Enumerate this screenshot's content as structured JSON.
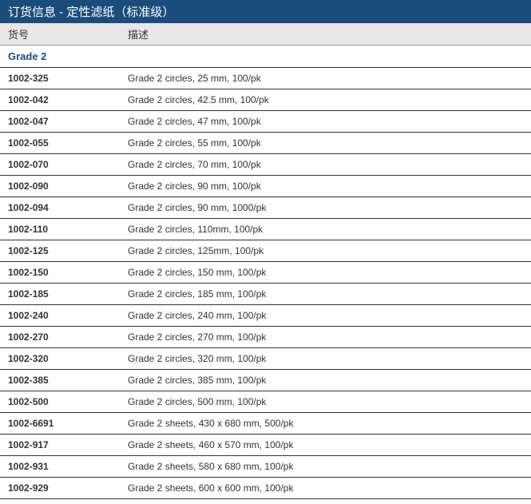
{
  "header": {
    "title": "订货信息 - 定性滤纸（标准级）"
  },
  "columns": {
    "partno_label": "货号",
    "desc_label": "描述"
  },
  "grade_label": "Grade 2",
  "rows": [
    {
      "partno": "1002-325",
      "desc": "Grade 2 circles, 25 mm, 100/pk"
    },
    {
      "partno": "1002-042",
      "desc": "Grade 2 circles, 42.5 mm, 100/pk"
    },
    {
      "partno": "1002-047",
      "desc": "Grade 2 circles, 47 mm, 100/pk"
    },
    {
      "partno": "1002-055",
      "desc": "Grade 2 circles, 55 mm, 100/pk"
    },
    {
      "partno": "1002-070",
      "desc": "Grade 2 circles, 70 mm, 100/pk"
    },
    {
      "partno": "1002-090",
      "desc": "Grade 2 circles, 90 mm, 100/pk"
    },
    {
      "partno": "1002-094",
      "desc": "Grade 2 circles, 90 mm, 1000/pk"
    },
    {
      "partno": "1002-110",
      "desc": "Grade 2 circles, 110mm, 100/pk"
    },
    {
      "partno": "1002-125",
      "desc": "Grade 2 circles, 125mm, 100/pk"
    },
    {
      "partno": "1002-150",
      "desc": "Grade 2 circles, 150 mm, 100/pk"
    },
    {
      "partno": "1002-185",
      "desc": "Grade 2 circles, 185 mm, 100/pk"
    },
    {
      "partno": "1002-240",
      "desc": "Grade 2 circles, 240 mm, 100/pk"
    },
    {
      "partno": "1002-270",
      "desc": "Grade 2 circles, 270 mm, 100/pk"
    },
    {
      "partno": "1002-320",
      "desc": "Grade 2 circles, 320 mm, 100/pk"
    },
    {
      "partno": "1002-385",
      "desc": "Grade 2 circles, 385 mm, 100/pk"
    },
    {
      "partno": "1002-500",
      "desc": "Grade 2 circles, 500 mm, 100/pk"
    },
    {
      "partno": "1002-6691",
      "desc": "Grade 2 sheets, 430 x 680 mm, 500/pk"
    },
    {
      "partno": "1002-917",
      "desc": "Grade 2 sheets, 460 x 570 mm, 100/pk"
    },
    {
      "partno": "1002-931",
      "desc": "Grade 2 sheets, 580 x 680 mm, 100/pk"
    },
    {
      "partno": "1002-929",
      "desc": "Grade 2 sheets, 600 x 600 mm, 100/pk"
    }
  ],
  "styles": {
    "header_bg": "#1a4d7a",
    "header_text": "#ffffff",
    "column_header_bg": "#e8e8e8",
    "row_border": "#333333",
    "grade_color": "#1a4d7a",
    "text_color": "#333333",
    "font_size_header": 15,
    "font_size_columns": 13,
    "font_size_rows": 12
  }
}
